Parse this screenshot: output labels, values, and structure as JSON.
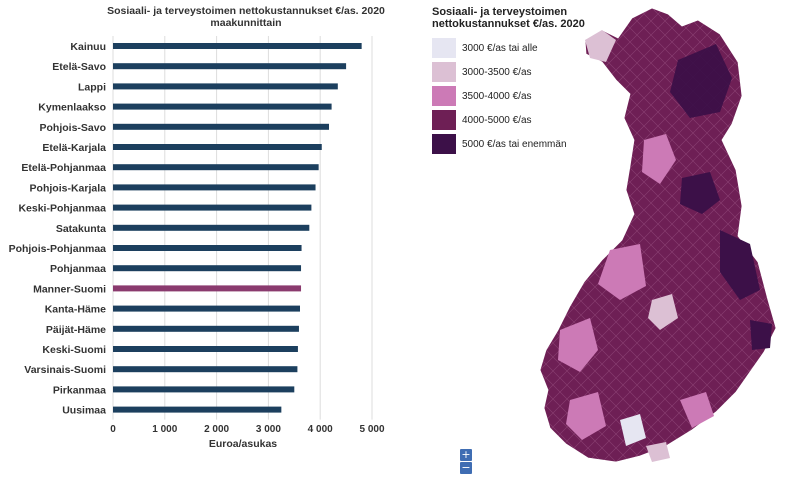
{
  "chart_data": {
    "type": "bar",
    "orientation": "horizontal",
    "title": "Sosiaali- ja terveystoimen nettokustannukset €/as. 2020",
    "subtitle": "maakunnittain",
    "xlabel": "Euroa/asukas",
    "ylabel": "",
    "xlim": [
      0,
      5000
    ],
    "xticks": [
      0,
      1000,
      2000,
      3000,
      4000,
      5000
    ],
    "xtick_labels": [
      "0",
      "1 000",
      "2 000",
      "3 000",
      "4 000",
      "5 000"
    ],
    "grid": true,
    "categories": [
      "Kainuu",
      "Etelä-Savo",
      "Lappi",
      "Kymenlaakso",
      "Pohjois-Savo",
      "Etelä-Karjala",
      "Etelä-Pohjanmaa",
      "Pohjois-Karjala",
      "Keski-Pohjanmaa",
      "Satakunta",
      "Pohjois-Pohjanmaa",
      "Pohjanmaa",
      "Manner-Suomi",
      "Kanta-Häme",
      "Päijät-Häme",
      "Keski-Suomi",
      "Varsinais-Suomi",
      "Pirkanmaa",
      "Uusimaa"
    ],
    "values": [
      4800,
      4500,
      4340,
      4220,
      4170,
      4030,
      3970,
      3910,
      3830,
      3790,
      3640,
      3630,
      3630,
      3610,
      3590,
      3570,
      3560,
      3500,
      3250
    ],
    "highlight": "Manner-Suomi",
    "colors": {
      "bar": "#1c3f5e",
      "highlight": "#8a3a6e",
      "grid": "#dddddd",
      "text": "#333333"
    }
  },
  "map": {
    "legend_title_line1": "Sosiaali- ja terveystoimen",
    "legend_title_line2": "nettokustannukset €/as. 2020",
    "legend": [
      {
        "label": "3000 €/as tai alle",
        "color": "#e6e6f2"
      },
      {
        "label": "3000-3500 €/as",
        "color": "#dcc0d4"
      },
      {
        "label": "3500-4000 €/as",
        "color": "#cc7ab6"
      },
      {
        "label": "4000-5000 €/as",
        "color": "#6e1f55"
      },
      {
        "label": "5000 €/as tai enemmän",
        "color": "#3c1048"
      }
    ],
    "zoom_in": "+",
    "zoom_out": "−"
  }
}
